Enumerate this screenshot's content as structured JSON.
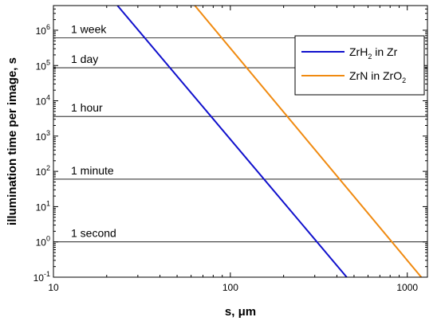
{
  "chart_data": {
    "type": "line",
    "xlabel": "s, μm",
    "ylabel": "illumination time per image, s",
    "xscale": "log",
    "yscale": "log",
    "xlim": [
      10,
      1300
    ],
    "ylim": [
      0.1,
      5000000
    ],
    "x_ticks": [
      {
        "value": 10,
        "label": "10"
      },
      {
        "value": 100,
        "label": "100"
      },
      {
        "value": 1000,
        "label": "1000"
      }
    ],
    "y_ticks": [
      {
        "value": 0.1,
        "mantissa": "10",
        "exponent": "-1"
      },
      {
        "value": 1,
        "mantissa": "10",
        "exponent": "0"
      },
      {
        "value": 10,
        "mantissa": "10",
        "exponent": "1"
      },
      {
        "value": 100,
        "mantissa": "10",
        "exponent": "2"
      },
      {
        "value": 1000,
        "mantissa": "10",
        "exponent": "3"
      },
      {
        "value": 10000,
        "mantissa": "10",
        "exponent": "4"
      },
      {
        "value": 100000,
        "mantissa": "10",
        "exponent": "5"
      },
      {
        "value": 1000000,
        "mantissa": "10",
        "exponent": "6"
      }
    ],
    "reference_lines": [
      {
        "label": "1 week",
        "value": 604800
      },
      {
        "label": "1 day",
        "value": 86400
      },
      {
        "label": "1 hour",
        "value": 3600
      },
      {
        "label": "1 minute",
        "value": 60
      },
      {
        "label": "1 second",
        "value": 1
      }
    ],
    "series": [
      {
        "name_main": "ZrH",
        "name_sub": "2",
        "name_tail": " in Zr",
        "color": "#1010cc",
        "x": [
          23,
          455
        ],
        "y": [
          5000000,
          0.1
        ]
      },
      {
        "name_main": "ZrN in ZrO",
        "name_sub": "2",
        "name_tail": "",
        "color": "#f08a10",
        "x": [
          63,
          1200
        ],
        "y": [
          5000000,
          0.1
        ]
      }
    ],
    "legend_position": "top-right",
    "grid": false
  }
}
